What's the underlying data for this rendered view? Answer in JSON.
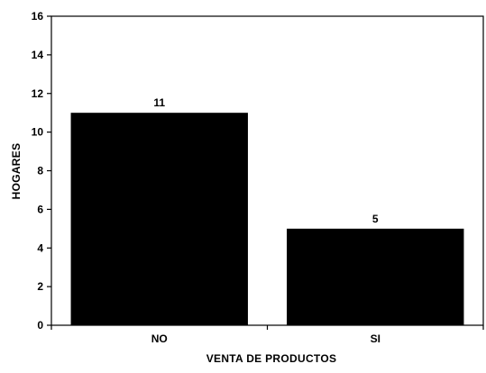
{
  "chart_data": {
    "type": "bar",
    "categories": [
      "NO",
      "SI"
    ],
    "values": [
      11,
      5
    ],
    "data_labels": [
      "11",
      "5"
    ],
    "xlabel": "VENTA DE PRODUCTOS",
    "ylabel": "HOGARES",
    "ylim": [
      0,
      16
    ],
    "yticks": [
      0,
      2,
      4,
      6,
      8,
      10,
      12,
      14,
      16
    ],
    "ytick_labels": [
      "0",
      "2",
      "4",
      "6",
      "8",
      "10",
      "12",
      "14",
      "16"
    ],
    "grid": false,
    "legend": "none",
    "bar_color": "#000000"
  }
}
